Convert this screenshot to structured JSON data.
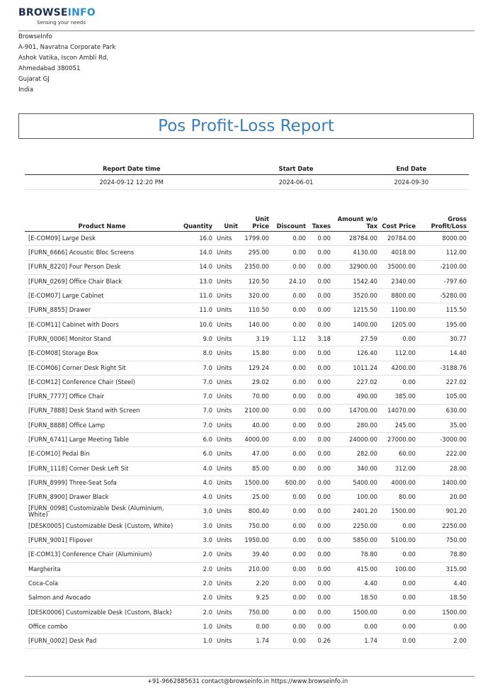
{
  "company": {
    "logo_part1": "BROWSE",
    "logo_part2": "INFO",
    "tagline": "Sensing your needs",
    "address": [
      "BrowseInfo",
      "A-901, Navratna Corporate Park",
      "Ashok Vatika, Iscon Ambli Rd,",
      "Ahmedabad 380051",
      "Gujarat GJ",
      "India"
    ]
  },
  "report": {
    "title": "Pos Profit-Loss Report",
    "info_headers": [
      "Report Date time",
      "Start Date",
      "End Date"
    ],
    "info_values": [
      "2024-09-12 12:20 PM",
      "2024-06-01",
      "2024-09-30"
    ]
  },
  "table": {
    "headers": [
      "Product Name",
      "Quantity",
      "Unit",
      "Unit Price",
      "Discount",
      "Taxes",
      "Amount w/o Tax",
      "Cost Price",
      "Gross Profit/Loss"
    ],
    "rows": [
      [
        "[E-COM09] Large Desk",
        "16.0",
        "Units",
        "1799.00",
        "0.00",
        "0.00",
        "28784.00",
        "20784.00",
        "8000.00"
      ],
      [
        "[FURN_6666] Acoustic Bloc Screens",
        "14.0",
        "Units",
        "295.00",
        "0.00",
        "0.00",
        "4130.00",
        "4018.00",
        "112.00"
      ],
      [
        "[FURN_8220] Four Person Desk",
        "14.0",
        "Units",
        "2350.00",
        "0.00",
        "0.00",
        "32900.00",
        "35000.00",
        "-2100.00"
      ],
      [
        "[FURN_0269] Office Chair Black",
        "13.0",
        "Units",
        "120.50",
        "24.10",
        "0.00",
        "1542.40",
        "2340.00",
        "-797.60"
      ],
      [
        "[E-COM07] Large Cabinet",
        "11.0",
        "Units",
        "320.00",
        "0.00",
        "0.00",
        "3520.00",
        "8800.00",
        "-5280.00"
      ],
      [
        "[FURN_8855] Drawer",
        "11.0",
        "Units",
        "110.50",
        "0.00",
        "0.00",
        "1215.50",
        "1100.00",
        "115.50"
      ],
      [
        "[E-COM11] Cabinet with Doors",
        "10.0",
        "Units",
        "140.00",
        "0.00",
        "0.00",
        "1400.00",
        "1205.00",
        "195.00"
      ],
      [
        "[FURN_0006] Monitor Stand",
        "9.0",
        "Units",
        "3.19",
        "1.12",
        "3.18",
        "27.59",
        "0.00",
        "30.77"
      ],
      [
        "[E-COM08] Storage Box",
        "8.0",
        "Units",
        "15.80",
        "0.00",
        "0.00",
        "126.40",
        "112.00",
        "14.40"
      ],
      [
        "[E-COM06] Corner Desk Right Sit",
        "7.0",
        "Units",
        "129.24",
        "0.00",
        "0.00",
        "1011.24",
        "4200.00",
        "-3188.76"
      ],
      [
        "[E-COM12] Conference Chair (Steel)",
        "7.0",
        "Units",
        "29.02",
        "0.00",
        "0.00",
        "227.02",
        "0.00",
        "227.02"
      ],
      [
        "[FURN_7777] Office Chair",
        "7.0",
        "Units",
        "70.00",
        "0.00",
        "0.00",
        "490.00",
        "385.00",
        "105.00"
      ],
      [
        "[FURN_7888] Desk Stand with Screen",
        "7.0",
        "Units",
        "2100.00",
        "0.00",
        "0.00",
        "14700.00",
        "14070.00",
        "630.00"
      ],
      [
        "[FURN_8888] Office Lamp",
        "7.0",
        "Units",
        "40.00",
        "0.00",
        "0.00",
        "280.00",
        "245.00",
        "35.00"
      ],
      [
        "[FURN_6741] Large Meeting Table",
        "6.0",
        "Units",
        "4000.00",
        "0.00",
        "0.00",
        "24000.00",
        "27000.00",
        "-3000.00"
      ],
      [
        "[E-COM10] Pedal Bin",
        "6.0",
        "Units",
        "47.00",
        "0.00",
        "0.00",
        "282.00",
        "60.00",
        "222.00"
      ],
      [
        "[FURN_1118] Corner Desk Left Sit",
        "4.0",
        "Units",
        "85.00",
        "0.00",
        "0.00",
        "340.00",
        "312.00",
        "28.00"
      ],
      [
        "[FURN_8999] Three-Seat Sofa",
        "4.0",
        "Units",
        "1500.00",
        "600.00",
        "0.00",
        "5400.00",
        "4000.00",
        "1400.00"
      ],
      [
        "[FURN_8900] Drawer Black",
        "4.0",
        "Units",
        "25.00",
        "0.00",
        "0.00",
        "100.00",
        "80.00",
        "20.00"
      ],
      [
        "[FURN_0098] Customizable Desk (Aluminium, White)",
        "3.0",
        "Units",
        "800.40",
        "0.00",
        "0.00",
        "2401.20",
        "1500.00",
        "901.20"
      ],
      [
        "[DESK0005] Customizable Desk (Custom, White)",
        "3.0",
        "Units",
        "750.00",
        "0.00",
        "0.00",
        "2250.00",
        "0.00",
        "2250.00"
      ],
      [
        "[FURN_9001] Flipover",
        "3.0",
        "Units",
        "1950.00",
        "0.00",
        "0.00",
        "5850.00",
        "5100.00",
        "750.00"
      ],
      [
        "[E-COM13] Conference Chair (Aluminium)",
        "2.0",
        "Units",
        "39.40",
        "0.00",
        "0.00",
        "78.80",
        "0.00",
        "78.80"
      ],
      [
        "Margherita",
        "2.0",
        "Units",
        "210.00",
        "0.00",
        "0.00",
        "415.00",
        "100.00",
        "315.00"
      ],
      [
        "Coca-Cola",
        "2.0",
        "Units",
        "2.20",
        "0.00",
        "0.00",
        "4.40",
        "0.00",
        "4.40"
      ],
      [
        "Salmon and Avocado",
        "2.0",
        "Units",
        "9.25",
        "0.00",
        "0.00",
        "18.50",
        "0.00",
        "18.50"
      ],
      [
        "[DESK0006] Customizable Desk (Custom, Black)",
        "2.0",
        "Units",
        "750.00",
        "0.00",
        "0.00",
        "1500.00",
        "0.00",
        "1500.00"
      ],
      [
        "Office combo",
        "1.0",
        "Units",
        "0.00",
        "0.00",
        "0.00",
        "0.00",
        "0.00",
        "0.00"
      ],
      [
        "[FURN_0002] Desk Pad",
        "1.0",
        "Units",
        "1.74",
        "0.00",
        "0.26",
        "1.74",
        "0.00",
        "2.00"
      ]
    ]
  },
  "footer": {
    "text": "+91-9662885631 contact@browseinfo.in https://www.browseinfo.in"
  },
  "colors": {
    "title": "#3a7fb5",
    "logo_dark": "#1d2f4d",
    "logo_light": "#2f8fcd"
  }
}
